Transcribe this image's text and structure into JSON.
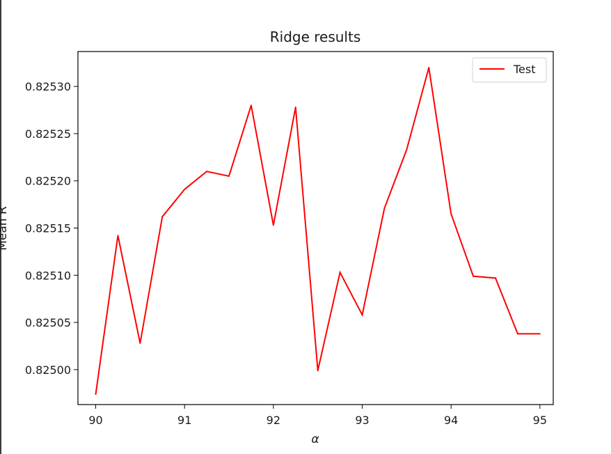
{
  "chart_data": {
    "type": "line",
    "title": "Ridge results",
    "xlabel": "α",
    "ylabel": "Mean R",
    "xlim": [
      89.8,
      95.15
    ],
    "ylim": [
      0.824963,
      0.825337
    ],
    "xticks": [
      90,
      91,
      92,
      93,
      94,
      95
    ],
    "xtick_labels": [
      "90",
      "91",
      "92",
      "93",
      "94",
      "95"
    ],
    "yticks": [
      0.825,
      0.82505,
      0.8251,
      0.82515,
      0.8252,
      0.82525,
      0.8253
    ],
    "ytick_labels": [
      "0.82500",
      "0.82505",
      "0.82510",
      "0.82515",
      "0.82520",
      "0.82525",
      "0.82530"
    ],
    "legend_location": "top-right",
    "grid": false,
    "series": [
      {
        "name": "Test",
        "color": "#ff0000",
        "x": [
          90.0,
          90.25,
          90.5,
          90.75,
          91.0,
          91.25,
          91.5,
          91.75,
          92.0,
          92.25,
          92.5,
          92.75,
          93.0,
          93.25,
          93.5,
          93.75,
          94.0,
          94.25,
          94.5,
          94.75,
          95.0
        ],
        "y": [
          0.824974,
          0.825142,
          0.825028,
          0.825162,
          0.825191,
          0.82521,
          0.825205,
          0.82528,
          0.825153,
          0.825278,
          0.824999,
          0.825103,
          0.825058,
          0.825171,
          0.825233,
          0.82532,
          0.825165,
          0.825099,
          0.825097,
          0.825038,
          0.825038
        ]
      }
    ]
  }
}
